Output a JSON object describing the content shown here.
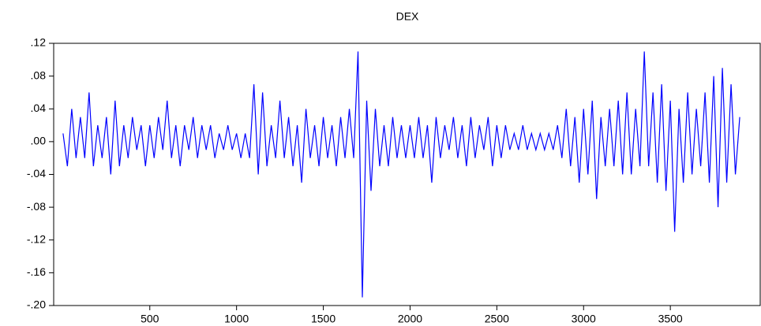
{
  "chart_data": {
    "type": "line",
    "title": "DEX",
    "x": [
      0,
      25,
      50,
      75,
      100,
      125,
      150,
      175,
      200,
      225,
      250,
      275,
      300,
      325,
      350,
      375,
      400,
      425,
      450,
      475,
      500,
      525,
      550,
      575,
      600,
      625,
      650,
      675,
      700,
      725,
      750,
      775,
      800,
      825,
      850,
      875,
      900,
      925,
      950,
      975,
      1000,
      1025,
      1050,
      1075,
      1100,
      1125,
      1150,
      1175,
      1200,
      1225,
      1250,
      1275,
      1300,
      1325,
      1350,
      1375,
      1400,
      1425,
      1450,
      1475,
      1500,
      1525,
      1550,
      1575,
      1600,
      1625,
      1650,
      1675,
      1700,
      1725,
      1750,
      1775,
      1800,
      1825,
      1850,
      1875,
      1900,
      1925,
      1950,
      1975,
      2000,
      2025,
      2050,
      2075,
      2100,
      2125,
      2150,
      2175,
      2200,
      2225,
      2250,
      2275,
      2300,
      2325,
      2350,
      2375,
      2400,
      2425,
      2450,
      2475,
      2500,
      2525,
      2550,
      2575,
      2600,
      2625,
      2650,
      2675,
      2700,
      2725,
      2750,
      2775,
      2800,
      2825,
      2850,
      2875,
      2900,
      2925,
      2950,
      2975,
      3000,
      3025,
      3050,
      3075,
      3100,
      3125,
      3150,
      3175,
      3200,
      3225,
      3250,
      3275,
      3300,
      3325,
      3350,
      3375,
      3400,
      3425,
      3450,
      3475,
      3500,
      3525,
      3550,
      3575,
      3600,
      3625,
      3650,
      3675,
      3700,
      3725,
      3750,
      3775,
      3800,
      3825,
      3850,
      3875,
      3900
    ],
    "series": [
      {
        "name": "DEX",
        "color": "#0000ff",
        "values": [
          0.01,
          -0.03,
          0.04,
          -0.02,
          0.03,
          -0.02,
          0.06,
          -0.03,
          0.02,
          -0.02,
          0.03,
          -0.04,
          0.05,
          -0.03,
          0.02,
          -0.02,
          0.03,
          -0.01,
          0.02,
          -0.03,
          0.02,
          -0.02,
          0.03,
          -0.01,
          0.05,
          -0.02,
          0.02,
          -0.03,
          0.02,
          -0.01,
          0.03,
          -0.02,
          0.02,
          -0.01,
          0.02,
          -0.02,
          0.01,
          -0.01,
          0.02,
          -0.01,
          0.01,
          -0.02,
          0.01,
          -0.02,
          0.07,
          -0.04,
          0.06,
          -0.03,
          0.02,
          -0.02,
          0.05,
          -0.02,
          0.03,
          -0.03,
          0.02,
          -0.05,
          0.04,
          -0.02,
          0.02,
          -0.03,
          0.03,
          -0.02,
          0.02,
          -0.03,
          0.03,
          -0.02,
          0.04,
          -0.02,
          0.11,
          -0.19,
          0.05,
          -0.06,
          0.04,
          -0.03,
          0.02,
          -0.03,
          0.03,
          -0.02,
          0.02,
          -0.02,
          0.02,
          -0.02,
          0.03,
          -0.02,
          0.02,
          -0.05,
          0.03,
          -0.02,
          0.02,
          -0.01,
          0.03,
          -0.02,
          0.02,
          -0.03,
          0.03,
          -0.02,
          0.02,
          -0.01,
          0.03,
          -0.03,
          0.02,
          -0.02,
          0.02,
          -0.01,
          0.01,
          -0.01,
          0.02,
          -0.01,
          0.01,
          -0.01,
          0.01,
          -0.01,
          0.01,
          -0.01,
          0.02,
          -0.02,
          0.04,
          -0.03,
          0.03,
          -0.05,
          0.04,
          -0.04,
          0.05,
          -0.07,
          0.03,
          -0.03,
          0.04,
          -0.03,
          0.05,
          -0.04,
          0.06,
          -0.04,
          0.04,
          -0.03,
          0.11,
          -0.03,
          0.06,
          -0.05,
          0.07,
          -0.06,
          0.05,
          -0.11,
          0.04,
          -0.05,
          0.06,
          -0.04,
          0.04,
          -0.03,
          0.06,
          -0.05,
          0.08,
          -0.08,
          0.09,
          -0.05,
          0.07,
          -0.04,
          0.03
        ]
      }
    ],
    "xlim": [
      -54,
      4018
    ],
    "xticks": [
      500,
      1000,
      1500,
      2000,
      2500,
      3000,
      3500
    ],
    "ylim": [
      -0.2,
      0.12
    ],
    "yticks": [
      {
        "value": -0.2,
        "label": "-.20"
      },
      {
        "value": -0.16,
        "label": "-.16"
      },
      {
        "value": -0.12,
        "label": "-.12"
      },
      {
        "value": -0.08,
        "label": "-.08"
      },
      {
        "value": -0.04,
        "label": "-.04"
      },
      {
        "value": 0,
        "label": ".00"
      },
      {
        "value": 0.04,
        "label": ".04"
      },
      {
        "value": 0.08,
        "label": ".08"
      },
      {
        "value": 0.12,
        "label": ".12"
      }
    ]
  }
}
